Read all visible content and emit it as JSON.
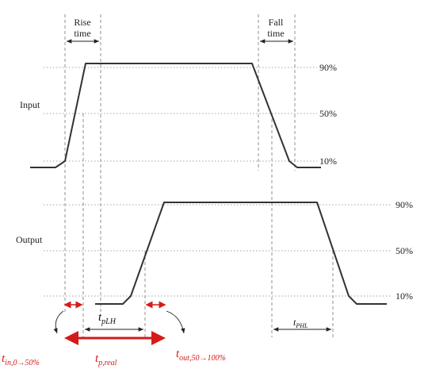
{
  "labels": {
    "rise_time": [
      "Rise",
      "time"
    ],
    "fall_time": [
      "Fall",
      "time"
    ],
    "input": "Input",
    "output": "Output"
  },
  "input_levels": [
    "90%",
    "50%",
    "10%"
  ],
  "output_levels": [
    "90%",
    "50%",
    "10%"
  ],
  "annotations": {
    "t_plh": {
      "symbol": "t",
      "subscript": "pLH"
    },
    "t_phl": {
      "symbol": "t",
      "subscript": "PHL"
    },
    "t_in": {
      "symbol": "t",
      "subscript": "in,0→50%"
    },
    "t_p_real": {
      "symbol": "t",
      "subscript": "p,real"
    },
    "t_out": {
      "symbol": "t",
      "subscript": "out,50→100%"
    }
  }
}
